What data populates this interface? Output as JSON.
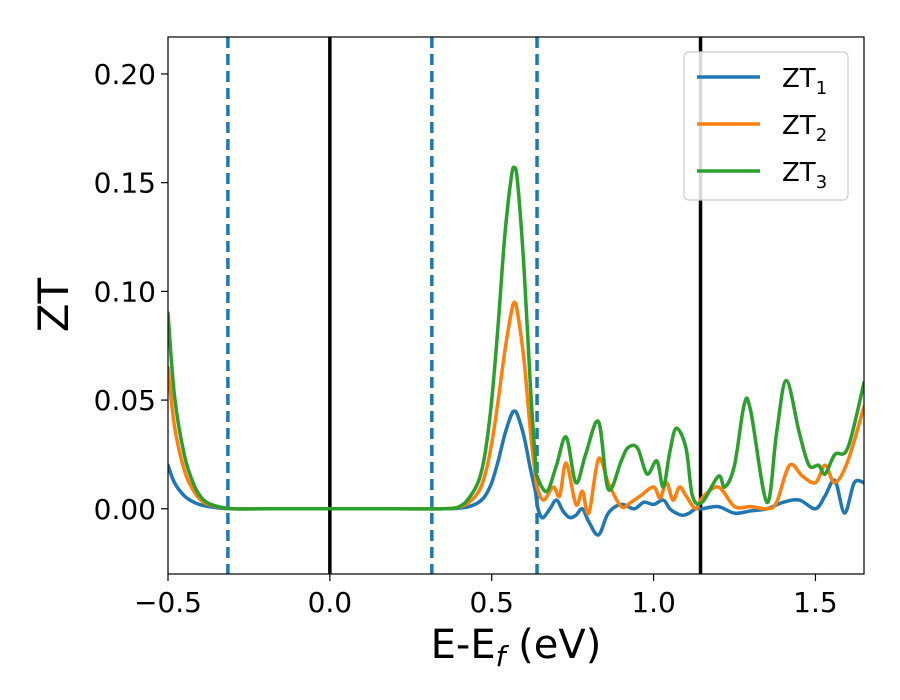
{
  "chart_data": {
    "type": "line",
    "xlabel": "E-E",
    "xlabel_sub": "f",
    "xlabel_unit": " (eV)",
    "ylabel": "ZT",
    "xlim": [
      -0.5,
      1.65
    ],
    "ylim": [
      -0.03,
      0.217
    ],
    "xticks": [
      -0.5,
      0.0,
      0.5,
      1.0,
      1.5
    ],
    "xtick_labels": [
      "−0.5",
      "0.0",
      "0.5",
      "1.0",
      "1.5"
    ],
    "yticks": [
      0.0,
      0.05,
      0.1,
      0.15,
      0.2
    ],
    "ytick_labels": [
      "0.00",
      "0.05",
      "0.10",
      "0.15",
      "0.20"
    ],
    "grid": false,
    "legend_position": "top-right",
    "vlines_solid": [
      0.0,
      1.145
    ],
    "vlines_dashed": [
      -0.315,
      0.315,
      0.64
    ],
    "vline_solid_color": "#000000",
    "vline_dashed_color": "#1f77b4",
    "series": [
      {
        "name": "ZT",
        "name_sub": "1",
        "color": "#1f77b4",
        "x": [
          -0.5,
          -0.48,
          -0.45,
          -0.42,
          -0.39,
          -0.35,
          -0.3,
          -0.2,
          0.0,
          0.2,
          0.35,
          0.4,
          0.43,
          0.46,
          0.48,
          0.5,
          0.52,
          0.54,
          0.56,
          0.57,
          0.58,
          0.6,
          0.62,
          0.635,
          0.64,
          0.65,
          0.66,
          0.68,
          0.7,
          0.72,
          0.74,
          0.76,
          0.78,
          0.8,
          0.83,
          0.86,
          0.9,
          0.94,
          0.97,
          1.0,
          1.03,
          1.05,
          1.07,
          1.09,
          1.11,
          1.13,
          1.15,
          1.2,
          1.25,
          1.3,
          1.35,
          1.4,
          1.45,
          1.5,
          1.53,
          1.56,
          1.59,
          1.62,
          1.65
        ],
        "y": [
          0.02,
          0.012,
          0.006,
          0.003,
          0.0015,
          0.0005,
          0.0,
          0.0,
          0.0,
          0.0,
          0.0,
          0.0003,
          0.001,
          0.003,
          0.006,
          0.012,
          0.022,
          0.034,
          0.043,
          0.045,
          0.043,
          0.033,
          0.018,
          0.008,
          0.002,
          -0.003,
          -0.004,
          0.0,
          0.004,
          -0.001,
          -0.004,
          -0.003,
          0.0,
          -0.006,
          -0.012,
          -0.002,
          0.002,
          0.0,
          0.003,
          0.002,
          0.004,
          0.0,
          -0.002,
          -0.003,
          -0.002,
          0.0,
          0.0,
          0.001,
          -0.002,
          -0.001,
          0.0,
          0.003,
          0.004,
          0.0,
          0.006,
          0.013,
          -0.002,
          0.012,
          0.012
        ]
      },
      {
        "name": "ZT",
        "name_sub": "2",
        "color": "#ff7f0e",
        "x": [
          -0.5,
          -0.48,
          -0.45,
          -0.42,
          -0.39,
          -0.35,
          -0.3,
          -0.2,
          0.0,
          0.2,
          0.35,
          0.4,
          0.43,
          0.46,
          0.48,
          0.5,
          0.52,
          0.54,
          0.56,
          0.57,
          0.58,
          0.6,
          0.62,
          0.635,
          0.64,
          0.66,
          0.69,
          0.71,
          0.73,
          0.76,
          0.78,
          0.8,
          0.83,
          0.86,
          0.9,
          0.93,
          0.96,
          1.0,
          1.02,
          1.04,
          1.06,
          1.08,
          1.1,
          1.13,
          1.15,
          1.2,
          1.25,
          1.3,
          1.35,
          1.38,
          1.42,
          1.46,
          1.5,
          1.53,
          1.56,
          1.6,
          1.65
        ],
        "y": [
          0.065,
          0.038,
          0.018,
          0.008,
          0.003,
          0.001,
          0.0,
          0.0,
          0.0,
          0.0,
          0.0,
          0.0008,
          0.003,
          0.008,
          0.016,
          0.03,
          0.05,
          0.072,
          0.09,
          0.095,
          0.09,
          0.068,
          0.035,
          0.015,
          0.01,
          0.004,
          0.01,
          0.006,
          0.021,
          0.002,
          0.008,
          -0.002,
          0.023,
          0.012,
          0.001,
          0.003,
          0.006,
          0.01,
          0.005,
          0.012,
          0.004,
          0.01,
          0.006,
          0.0,
          0.005,
          0.01,
          0.001,
          0.001,
          0.0,
          0.003,
          0.02,
          0.015,
          0.012,
          0.02,
          0.012,
          0.022,
          0.047
        ]
      },
      {
        "name": "ZT",
        "name_sub": "3",
        "color": "#2ca02c",
        "x": [
          -0.5,
          -0.48,
          -0.45,
          -0.42,
          -0.39,
          -0.35,
          -0.3,
          -0.2,
          0.0,
          0.2,
          0.35,
          0.4,
          0.43,
          0.46,
          0.48,
          0.5,
          0.52,
          0.54,
          0.56,
          0.57,
          0.58,
          0.6,
          0.62,
          0.635,
          0.64,
          0.67,
          0.7,
          0.73,
          0.76,
          0.79,
          0.83,
          0.86,
          0.9,
          0.92,
          0.95,
          0.98,
          1.01,
          1.03,
          1.05,
          1.07,
          1.1,
          1.12,
          1.15,
          1.2,
          1.22,
          1.25,
          1.28,
          1.3,
          1.35,
          1.38,
          1.41,
          1.45,
          1.48,
          1.51,
          1.53,
          1.56,
          1.6,
          1.65
        ],
        "y": [
          0.09,
          0.052,
          0.025,
          0.011,
          0.004,
          0.0012,
          0.0,
          0.0,
          0.0,
          0.0,
          0.0,
          0.001,
          0.005,
          0.013,
          0.026,
          0.05,
          0.085,
          0.125,
          0.152,
          0.157,
          0.15,
          0.11,
          0.055,
          0.022,
          0.015,
          0.008,
          0.02,
          0.033,
          0.012,
          0.025,
          0.04,
          0.009,
          0.022,
          0.028,
          0.028,
          0.016,
          0.022,
          0.01,
          0.026,
          0.037,
          0.028,
          0.006,
          0.003,
          0.015,
          0.01,
          0.02,
          0.048,
          0.045,
          0.003,
          0.035,
          0.059,
          0.035,
          0.02,
          0.02,
          0.016,
          0.025,
          0.028,
          0.058
        ]
      }
    ]
  }
}
